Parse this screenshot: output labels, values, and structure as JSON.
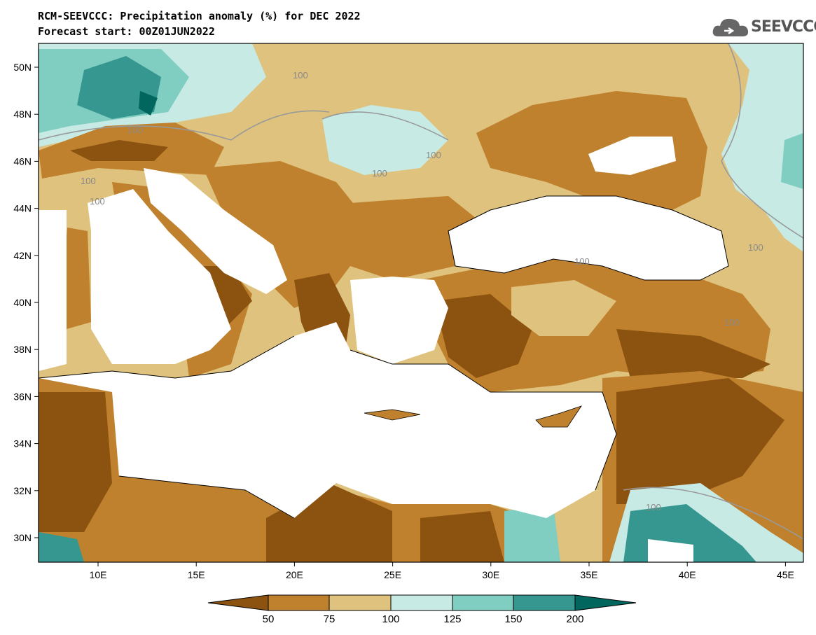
{
  "header": {
    "title_line1": "RCM-SEEVCCC: Precipitation anomaly (%) for DEC 2022",
    "title_line2": "Forecast start: 00Z01JUN2022",
    "logo_text": "SEEVCCC",
    "logo_icon": "cloud-icon"
  },
  "map": {
    "lat_labels": [
      "50N",
      "48N",
      "46N",
      "44N",
      "42N",
      "40N",
      "38N",
      "36N",
      "34N",
      "32N",
      "30N"
    ],
    "lon_labels": [
      "10E",
      "15E",
      "20E",
      "25E",
      "30E",
      "35E",
      "40E",
      "45E"
    ],
    "contour_labels": [
      "100",
      "100",
      "100",
      "100",
      "100",
      "100",
      "100",
      "100",
      "100",
      "100",
      "100"
    ]
  },
  "colorbar": {
    "colors": [
      "#8c5210",
      "#bf812d",
      "#dfc27d",
      "#c7eae5",
      "#80cdc1",
      "#35978f",
      "#01665e"
    ],
    "tick_labels": [
      "50",
      "75",
      "100",
      "125",
      "150",
      "200"
    ]
  }
}
